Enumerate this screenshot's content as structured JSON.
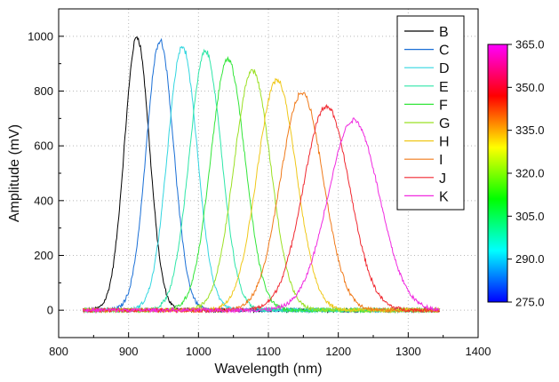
{
  "chart_data": {
    "type": "line",
    "xlabel": "Wavelength (nm)",
    "ylabel": "Amplitude (mV)",
    "xlim": [
      800,
      1400
    ],
    "ylim": [
      -100,
      1100
    ],
    "grid": true,
    "legend_position": "top-right",
    "x_ticks": [
      "800",
      "900",
      "1000",
      "1100",
      "1200",
      "1300",
      "1400"
    ],
    "y_ticks": [
      "0",
      "200",
      "400",
      "600",
      "800",
      "1000"
    ],
    "x_range_measured": [
      835,
      1345
    ],
    "series": [
      {
        "name": "B",
        "color": "#000000",
        "peak_x": 912,
        "peak_y": 998,
        "fwhm": 42
      },
      {
        "name": "C",
        "color": "#1a6fd6",
        "peak_x": 945,
        "peak_y": 985,
        "fwhm": 46
      },
      {
        "name": "D",
        "color": "#33d6e0",
        "peak_x": 977,
        "peak_y": 962,
        "fwhm": 50
      },
      {
        "name": "E",
        "color": "#2ee6a8",
        "peak_x": 1010,
        "peak_y": 945,
        "fwhm": 54
      },
      {
        "name": "F",
        "color": "#33e63a",
        "peak_x": 1042,
        "peak_y": 915,
        "fwhm": 58
      },
      {
        "name": "G",
        "color": "#9be024",
        "peak_x": 1077,
        "peak_y": 875,
        "fwhm": 62
      },
      {
        "name": "H",
        "color": "#f0c81a",
        "peak_x": 1112,
        "peak_y": 840,
        "fwhm": 66
      },
      {
        "name": "I",
        "color": "#f07a1a",
        "peak_x": 1148,
        "peak_y": 793,
        "fwhm": 72
      },
      {
        "name": "J",
        "color": "#f02830",
        "peak_x": 1183,
        "peak_y": 745,
        "fwhm": 78
      },
      {
        "name": "K",
        "color": "#f02ae0",
        "peak_x": 1222,
        "peak_y": 695,
        "fwhm": 86
      }
    ],
    "colorbar": {
      "range": [
        275,
        365
      ],
      "ticks": [
        "365.0",
        "350.0",
        "335.0",
        "320.0",
        "305.0",
        "290.0",
        "275.0"
      ],
      "colors": [
        "#0000ff",
        "#00ffff",
        "#00ff00",
        "#ffff00",
        "#ff0000",
        "#ff00ff"
      ]
    }
  }
}
